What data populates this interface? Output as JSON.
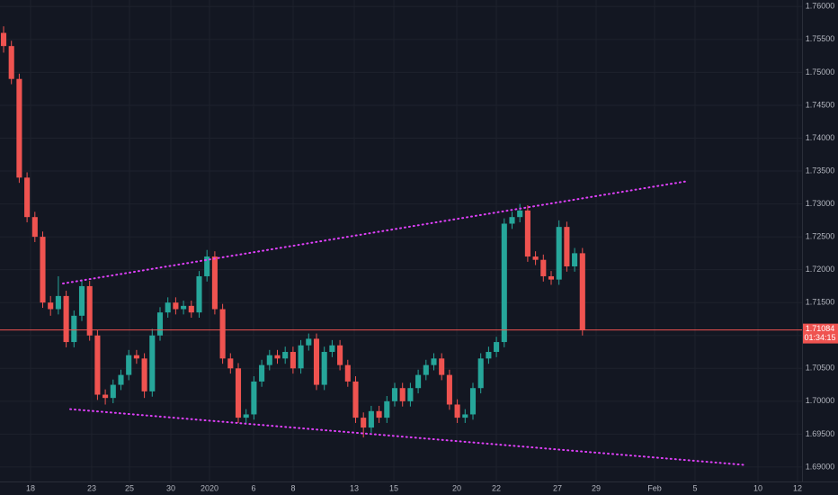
{
  "chart_data": {
    "type": "candlestick",
    "up_color": "#26a69a",
    "down_color": "#ef5350",
    "grid": true,
    "xlim": [
      -0.46,
      102.07
    ],
    "xticks": [
      {
        "value": 3.45,
        "label": "18"
      },
      {
        "value": 11.26,
        "label": "23"
      },
      {
        "value": 16.09,
        "label": "25"
      },
      {
        "value": 21.38,
        "label": "30"
      },
      {
        "value": 26.32,
        "label": "2020"
      },
      {
        "value": 31.95,
        "label": "6"
      },
      {
        "value": 37.01,
        "label": "8"
      },
      {
        "value": 44.83,
        "label": "13"
      },
      {
        "value": 49.89,
        "label": "15"
      },
      {
        "value": 57.93,
        "label": "20"
      },
      {
        "value": 62.99,
        "label": "22"
      },
      {
        "value": 70.8,
        "label": "27"
      },
      {
        "value": 75.75,
        "label": "29"
      },
      {
        "value": 83.22,
        "label": "Feb"
      },
      {
        "value": 88.39,
        "label": "5"
      },
      {
        "value": 96.44,
        "label": "10"
      },
      {
        "value": 101.49,
        "label": "12"
      }
    ],
    "ylim": [
      1.6878,
      1.761
    ],
    "yticks": [
      {
        "value": 1.69,
        "label": "1.69000"
      },
      {
        "value": 1.695,
        "label": "1.69500"
      },
      {
        "value": 1.7,
        "label": "1.70000"
      },
      {
        "value": 1.705,
        "label": "1.70500"
      },
      {
        "value": 1.71,
        "label": "1.71000"
      },
      {
        "value": 1.715,
        "label": "1.71500"
      },
      {
        "value": 1.72,
        "label": "1.72000"
      },
      {
        "value": 1.725,
        "label": "1.72500"
      },
      {
        "value": 1.73,
        "label": "1.73000"
      },
      {
        "value": 1.735,
        "label": "1.73500"
      },
      {
        "value": 1.74,
        "label": "1.74000"
      },
      {
        "value": 1.745,
        "label": "1.74500"
      },
      {
        "value": 1.75,
        "label": "1.75000"
      },
      {
        "value": 1.755,
        "label": "1.75500"
      },
      {
        "value": 1.76,
        "label": "1.76000"
      }
    ],
    "open": [
      1.756,
      1.754,
      1.749,
      1.734,
      1.728,
      1.725,
      1.715,
      1.714,
      1.716,
      1.709,
      1.713,
      1.7175,
      1.71,
      1.701,
      1.7005,
      1.7025,
      1.704,
      1.707,
      1.7065,
      1.7015,
      1.71,
      1.7135,
      1.715,
      1.714,
      1.7145,
      1.7135,
      1.719,
      1.722,
      1.714,
      1.7065,
      1.705,
      1.6975,
      1.698,
      1.703,
      1.7055,
      1.707,
      1.7065,
      1.7075,
      1.705,
      1.7085,
      1.7095,
      1.7025,
      1.7075,
      1.7085,
      1.7055,
      1.703,
      1.6975,
      1.696,
      1.6985,
      1.6975,
      1.7,
      1.702,
      1.7,
      1.702,
      1.704,
      1.7055,
      1.7065,
      1.704,
      1.6995,
      1.6975,
      1.698,
      1.702,
      1.7065,
      1.7075,
      1.709,
      1.727,
      1.728,
      1.729,
      1.722,
      1.7215,
      1.719,
      1.7185,
      1.7265,
      1.7205,
      1.7225
    ],
    "high": [
      1.757,
      1.7548,
      1.7498,
      1.7348,
      1.7288,
      1.7258,
      1.716,
      1.719,
      1.7168,
      1.7138,
      1.7185,
      1.7183,
      1.7108,
      1.7018,
      1.7033,
      1.7048,
      1.7078,
      1.7078,
      1.7073,
      1.711,
      1.7143,
      1.7158,
      1.7158,
      1.7153,
      1.7153,
      1.7198,
      1.723,
      1.7228,
      1.7148,
      1.7073,
      1.7058,
      1.6988,
      1.7038,
      1.7063,
      1.7078,
      1.7078,
      1.7083,
      1.7083,
      1.7093,
      1.7103,
      1.7103,
      1.7083,
      1.7093,
      1.7093,
      1.7063,
      1.7038,
      1.6983,
      1.6993,
      1.6993,
      1.7008,
      1.7028,
      1.7028,
      1.7028,
      1.7048,
      1.7063,
      1.7073,
      1.7073,
      1.7048,
      1.7003,
      1.6988,
      1.7028,
      1.7073,
      1.7083,
      1.7098,
      1.7278,
      1.7288,
      1.73,
      1.7298,
      1.7228,
      1.7223,
      1.7198,
      1.7275,
      1.7273,
      1.7233,
      1.7233
    ],
    "low": [
      1.753,
      1.7482,
      1.7332,
      1.7272,
      1.7242,
      1.7142,
      1.713,
      1.7132,
      1.7082,
      1.7082,
      1.7122,
      1.7092,
      1.7002,
      1.6995,
      1.6997,
      1.7017,
      1.7032,
      1.7057,
      1.7005,
      1.7007,
      1.7092,
      1.7127,
      1.7132,
      1.7132,
      1.7127,
      1.7127,
      1.7182,
      1.7132,
      1.7057,
      1.7042,
      1.6967,
      1.6967,
      1.6972,
      1.7022,
      1.7047,
      1.7057,
      1.7057,
      1.7042,
      1.7042,
      1.7077,
      1.7017,
      1.7017,
      1.7067,
      1.7047,
      1.7022,
      1.6967,
      1.6945,
      1.6952,
      1.6967,
      1.6967,
      1.6992,
      1.6992,
      1.6992,
      1.7012,
      1.7032,
      1.7047,
      1.7032,
      1.6987,
      1.6967,
      1.6967,
      1.6972,
      1.7012,
      1.7057,
      1.7067,
      1.7082,
      1.7262,
      1.7272,
      1.7212,
      1.7207,
      1.7182,
      1.7177,
      1.7177,
      1.7197,
      1.7197,
      1.71
    ],
    "close": [
      1.754,
      1.749,
      1.734,
      1.728,
      1.725,
      1.715,
      1.714,
      1.716,
      1.709,
      1.713,
      1.7175,
      1.71,
      1.701,
      1.7005,
      1.7025,
      1.704,
      1.707,
      1.7065,
      1.7015,
      1.71,
      1.7135,
      1.715,
      1.714,
      1.7145,
      1.7135,
      1.719,
      1.722,
      1.714,
      1.7065,
      1.705,
      1.6975,
      1.698,
      1.703,
      1.7055,
      1.707,
      1.7065,
      1.7075,
      1.705,
      1.7085,
      1.7095,
      1.7025,
      1.7075,
      1.7085,
      1.7055,
      1.703,
      1.6975,
      1.696,
      1.6985,
      1.6975,
      1.7,
      1.702,
      1.7,
      1.702,
      1.704,
      1.7055,
      1.7065,
      1.704,
      1.6995,
      1.6975,
      1.698,
      1.702,
      1.7065,
      1.7075,
      1.709,
      1.727,
      1.728,
      1.729,
      1.722,
      1.7215,
      1.719,
      1.7185,
      1.7265,
      1.7205,
      1.7225,
      1.7108
    ],
    "trendlines": [
      {
        "x": [
          7.59,
          87.1
        ],
        "y": [
          1.7179,
          1.7334
        ],
        "color": "#e040fb"
      },
      {
        "x": [
          8.51,
          94.94
        ],
        "y": [
          1.6988,
          1.6903
        ],
        "color": "#e040fb"
      }
    ],
    "last_price": {
      "value": 1.71084,
      "label": "1.71084",
      "countdown": "01:34:15",
      "color": "#ef5350"
    }
  }
}
